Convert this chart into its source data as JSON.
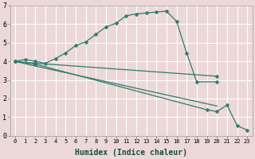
{
  "xlabel": "Humidex (Indice chaleur)",
  "bg_color": "#ecd8d8",
  "plot_bg_color": "#ecd8d8",
  "grid_color": "#ffffff",
  "line_color": "#2e7b6e",
  "line1_x": [
    0,
    1,
    2,
    3,
    4,
    5,
    6,
    7,
    8,
    9,
    10,
    11,
    12,
    13,
    14,
    15,
    16,
    17,
    18,
    20
  ],
  "line1_y": [
    4.0,
    4.1,
    4.0,
    3.9,
    4.15,
    4.45,
    4.85,
    5.05,
    5.45,
    5.85,
    6.05,
    6.45,
    6.55,
    6.6,
    6.65,
    6.7,
    6.15,
    4.45,
    2.9,
    2.9
  ],
  "line2_x": [
    0,
    2,
    20
  ],
  "line2_y": [
    4.0,
    3.9,
    3.2
  ],
  "line3_x": [
    0,
    2,
    19,
    20,
    21,
    22,
    23
  ],
  "line3_y": [
    4.0,
    3.85,
    1.4,
    1.3,
    1.65,
    0.55,
    0.3
  ],
  "line4_x": [
    0,
    2,
    20
  ],
  "line4_y": [
    4.0,
    3.75,
    1.6
  ],
  "xlim": [
    -0.5,
    23.5
  ],
  "ylim": [
    0,
    7
  ],
  "xticks": [
    0,
    1,
    2,
    3,
    4,
    5,
    6,
    7,
    8,
    9,
    10,
    11,
    12,
    13,
    14,
    15,
    16,
    17,
    18,
    19,
    20,
    21,
    22,
    23
  ],
  "yticks": [
    0,
    1,
    2,
    3,
    4,
    5,
    6,
    7
  ],
  "xlabel_fontsize": 7,
  "tick_fontsize_x": 5,
  "tick_fontsize_y": 6,
  "marker_size": 2.5,
  "line_width": 0.9
}
